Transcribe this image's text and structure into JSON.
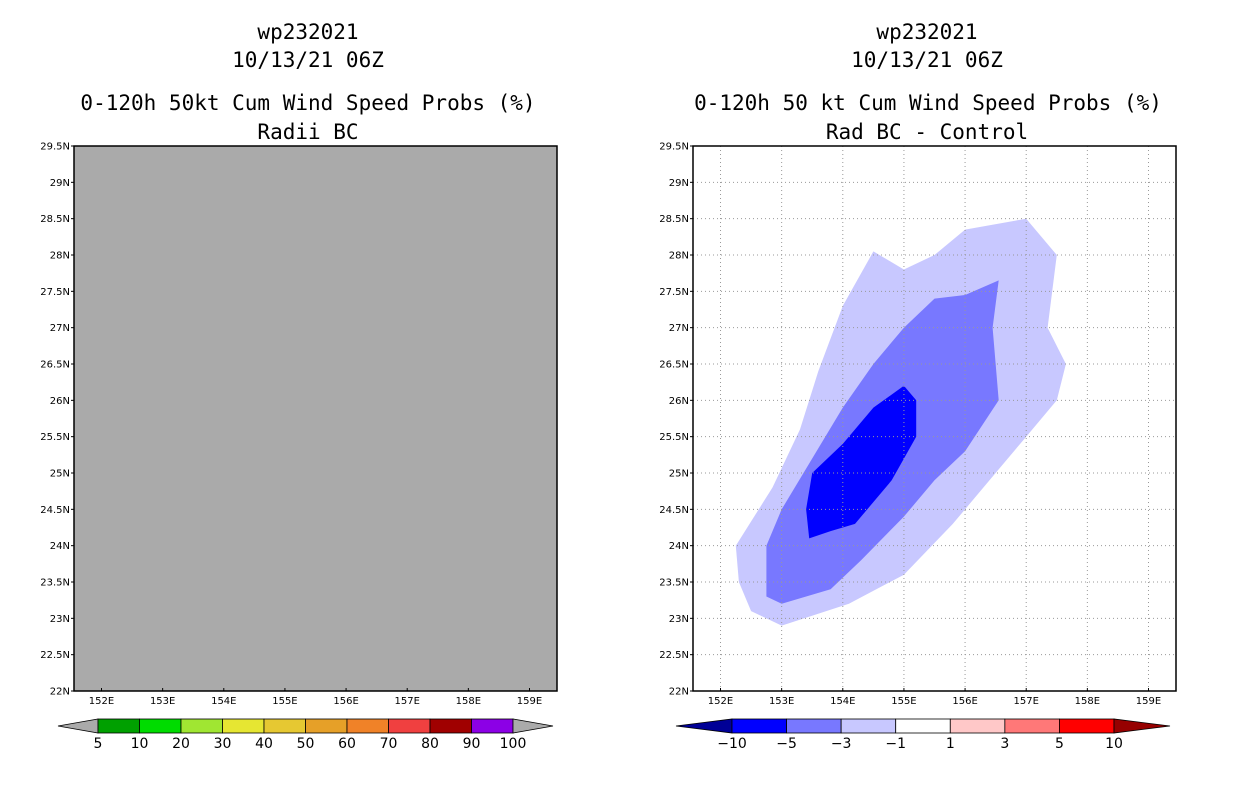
{
  "chart_data": [
    {
      "type": "heatmap",
      "storm_id": "wp232021",
      "datetime": "10/13/21 06Z",
      "title": "0-120h 50kt Cum Wind Speed Probs (%)",
      "subtitle": "Radii BC",
      "x_ticks": [
        "152E",
        "153E",
        "154E",
        "155E",
        "156E",
        "157E",
        "158E",
        "159E"
      ],
      "y_ticks": [
        "29.5N",
        "29N",
        "28.5N",
        "28N",
        "27.5N",
        "27N",
        "26.5N",
        "26N",
        "25.5N",
        "25N",
        "24.5N",
        "24N",
        "23.5N",
        "23N",
        "22.5N",
        "22N"
      ],
      "xlim": [
        151.55,
        159.45
      ],
      "ylim": [
        22,
        29.5
      ],
      "background": "#aaaaaa",
      "grid": false,
      "colorbar": {
        "labels": [
          "5",
          "10",
          "20",
          "30",
          "40",
          "50",
          "60",
          "70",
          "80",
          "90",
          "100"
        ],
        "colors": [
          "#aaaaaa",
          "#00a000",
          "#00dc00",
          "#a0e632",
          "#e6e632",
          "#e6c832",
          "#e6a028",
          "#f08228",
          "#f04040",
          "#a00000",
          "#8c00e6",
          "#aaaaaa"
        ]
      }
    },
    {
      "type": "heatmap",
      "storm_id": "wp232021",
      "datetime": "10/13/21 06Z",
      "title": "0-120h 50 kt Cum Wind Speed Probs (%)",
      "subtitle": "Rad BC - Control",
      "x_ticks": [
        "152E",
        "153E",
        "154E",
        "155E",
        "156E",
        "157E",
        "158E",
        "159E"
      ],
      "y_ticks": [
        "29.5N",
        "29N",
        "28.5N",
        "28N",
        "27.5N",
        "27N",
        "26.5N",
        "26N",
        "25.5N",
        "25N",
        "24.5N",
        "24N",
        "23.5N",
        "23N",
        "22.5N",
        "22N"
      ],
      "xlim": [
        151.55,
        159.45
      ],
      "ylim": [
        22,
        29.5
      ],
      "background": "#ffffff",
      "grid": true,
      "colorbar": {
        "labels": [
          "-10",
          "-5",
          "-3",
          "-1",
          "1",
          "3",
          "5",
          "10"
        ],
        "colors": [
          "#000096",
          "#0000ff",
          "#7878ff",
          "#c8c8ff",
          "#ffffff",
          "#ffc8c8",
          "#ff7878",
          "#ff0000",
          "#960000"
        ]
      },
      "contours": [
        {
          "level": "-3 to -1",
          "color": "#c8c8ff",
          "points": [
            [
              152.25,
              24.0
            ],
            [
              152.85,
              24.8
            ],
            [
              153.3,
              25.6
            ],
            [
              153.6,
              26.4
            ],
            [
              154.0,
              27.3
            ],
            [
              154.5,
              28.05
            ],
            [
              155.0,
              27.8
            ],
            [
              155.5,
              28.0
            ],
            [
              156.0,
              28.35
            ],
            [
              157.0,
              28.5
            ],
            [
              157.5,
              28.0
            ],
            [
              157.35,
              27.0
            ],
            [
              157.65,
              26.5
            ],
            [
              157.5,
              26.0
            ],
            [
              157.0,
              25.5
            ],
            [
              156.5,
              25.0
            ],
            [
              155.8,
              24.3
            ],
            [
              155.0,
              23.6
            ],
            [
              154.1,
              23.2
            ],
            [
              153.0,
              22.9
            ],
            [
              152.5,
              23.1
            ],
            [
              152.3,
              23.5
            ]
          ]
        },
        {
          "level": "-5 to -3",
          "color": "#7878ff",
          "points": [
            [
              152.75,
              23.3
            ],
            [
              152.75,
              24.0
            ],
            [
              153.0,
              24.5
            ],
            [
              153.5,
              25.2
            ],
            [
              154.0,
              25.9
            ],
            [
              154.5,
              26.5
            ],
            [
              155.0,
              27.0
            ],
            [
              155.5,
              27.4
            ],
            [
              156.0,
              27.45
            ],
            [
              156.55,
              27.65
            ],
            [
              156.45,
              27.0
            ],
            [
              156.55,
              26.0
            ],
            [
              156.0,
              25.3
            ],
            [
              155.5,
              24.9
            ],
            [
              155.0,
              24.4
            ],
            [
              154.3,
              23.8
            ],
            [
              153.8,
              23.4
            ],
            [
              153.0,
              23.2
            ]
          ]
        },
        {
          "level": "-10 to -5",
          "color": "#0000ff",
          "points": [
            [
              153.45,
              24.1
            ],
            [
              153.4,
              24.5
            ],
            [
              153.5,
              25.0
            ],
            [
              154.0,
              25.4
            ],
            [
              154.5,
              25.9
            ],
            [
              155.0,
              26.2
            ],
            [
              155.2,
              26.0
            ],
            [
              155.2,
              25.5
            ],
            [
              154.8,
              24.9
            ],
            [
              154.2,
              24.3
            ],
            [
              153.8,
              24.2
            ]
          ]
        }
      ]
    }
  ]
}
